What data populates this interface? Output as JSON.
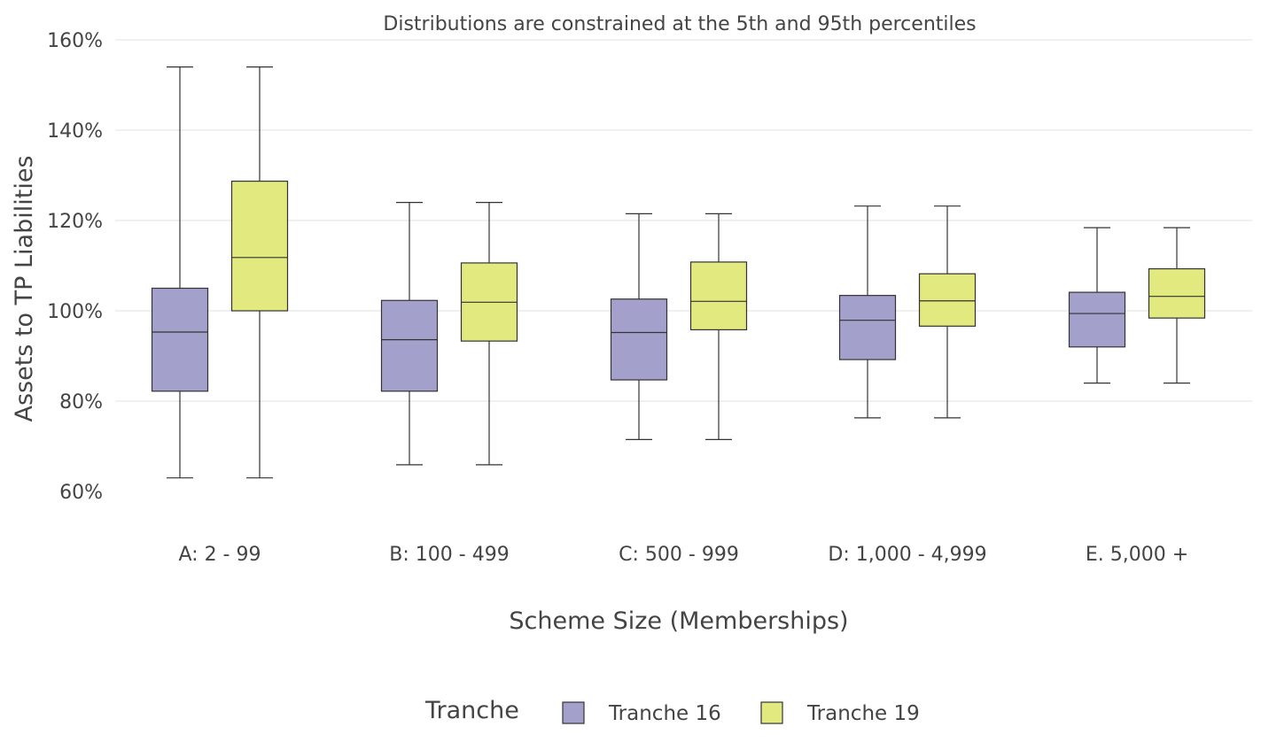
{
  "chart_data": {
    "type": "box",
    "title": "Distributions are constrained at the 5th and 95th percentiles",
    "xlabel": "Scheme Size (Memberships)",
    "ylabel": "Assets to  TP Liabilities",
    "ylim": [
      60,
      160
    ],
    "yticks": [
      {
        "value": 60,
        "label": "60%"
      },
      {
        "value": 80,
        "label": "80%"
      },
      {
        "value": 100,
        "label": "100%"
      },
      {
        "value": 120,
        "label": "120%"
      },
      {
        "value": 140,
        "label": "140%"
      },
      {
        "value": 160,
        "label": "160%"
      }
    ],
    "grid": true,
    "categories": [
      "A: 2 - 99",
      "B: 100 - 499",
      "C: 500 - 999",
      "D: 1,000 - 4,999",
      "E. 5,000 +"
    ],
    "legend": {
      "title": "Tranche",
      "position": "bottom"
    },
    "series": [
      {
        "name": "Tranche 16",
        "color": "#a3a1cb",
        "boxes": [
          {
            "min": 63.0,
            "q1": 82.2,
            "median": 95.3,
            "q3": 105.0,
            "max": 154.0
          },
          {
            "min": 65.9,
            "q1": 82.2,
            "median": 93.6,
            "q3": 102.3,
            "max": 124.0
          },
          {
            "min": 71.5,
            "q1": 84.7,
            "median": 95.2,
            "q3": 102.6,
            "max": 121.5
          },
          {
            "min": 76.3,
            "q1": 89.2,
            "median": 97.9,
            "q3": 103.4,
            "max": 123.2
          },
          {
            "min": 84.0,
            "q1": 92.0,
            "median": 99.4,
            "q3": 104.1,
            "max": 118.4
          }
        ]
      },
      {
        "name": "Tranche 19",
        "color": "#e1e97f",
        "boxes": [
          {
            "min": 63.0,
            "q1": 100.0,
            "median": 111.8,
            "q3": 128.7,
            "max": 154.0
          },
          {
            "min": 65.9,
            "q1": 93.3,
            "median": 101.9,
            "q3": 110.6,
            "max": 124.0
          },
          {
            "min": 71.5,
            "q1": 95.8,
            "median": 102.1,
            "q3": 110.8,
            "max": 121.5
          },
          {
            "min": 76.3,
            "q1": 96.6,
            "median": 102.2,
            "q3": 108.2,
            "max": 123.2
          },
          {
            "min": 84.0,
            "q1": 98.4,
            "median": 103.2,
            "q3": 109.3,
            "max": 118.4
          }
        ]
      }
    ]
  }
}
